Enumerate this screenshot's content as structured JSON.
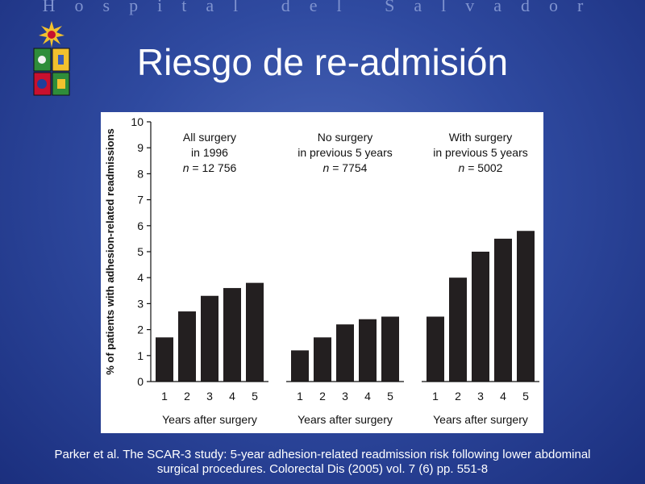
{
  "header": {
    "institution": "Hospital del Salvador"
  },
  "title": "Riesgo de re-admisión",
  "colors": {
    "bar": "#231f20",
    "background": "#2f4aa0",
    "panel": "#ffffff"
  },
  "logo": {
    "icon": "university-crest-icon"
  },
  "chart_data": {
    "type": "bar",
    "ylabel": "% of patients with adhesion-related readmissions",
    "ylim": [
      0,
      10
    ],
    "yticks": [
      "0",
      "1",
      "2",
      "3",
      "4",
      "5",
      "6",
      "7",
      "8",
      "9",
      "10"
    ],
    "panels": [
      {
        "title_lines": [
          "All surgery",
          "in 1996",
          "n = 12 756"
        ],
        "xlabel": "Years after surgery",
        "categories": [
          "1",
          "2",
          "3",
          "4",
          "5"
        ],
        "values": [
          1.7,
          2.7,
          3.3,
          3.6,
          3.8
        ]
      },
      {
        "title_lines": [
          "No surgery",
          "in previous 5 years",
          "n = 7754"
        ],
        "xlabel": "Years after surgery",
        "categories": [
          "1",
          "2",
          "3",
          "4",
          "5"
        ],
        "values": [
          1.2,
          1.7,
          2.2,
          2.4,
          2.5
        ]
      },
      {
        "title_lines": [
          "With surgery",
          "in previous 5 years",
          "n = 5002"
        ],
        "xlabel": "Years after surgery",
        "categories": [
          "1",
          "2",
          "3",
          "4",
          "5"
        ],
        "values": [
          2.5,
          4.0,
          5.0,
          5.5,
          5.8
        ]
      }
    ]
  },
  "caption": {
    "line1": "Parker et al. The SCAR-3 study: 5-year adhesion-related readmission risk following lower abdominal",
    "line2": "surgical procedures. Colorectal Dis (2005) vol. 7 (6) pp. 551-8"
  }
}
